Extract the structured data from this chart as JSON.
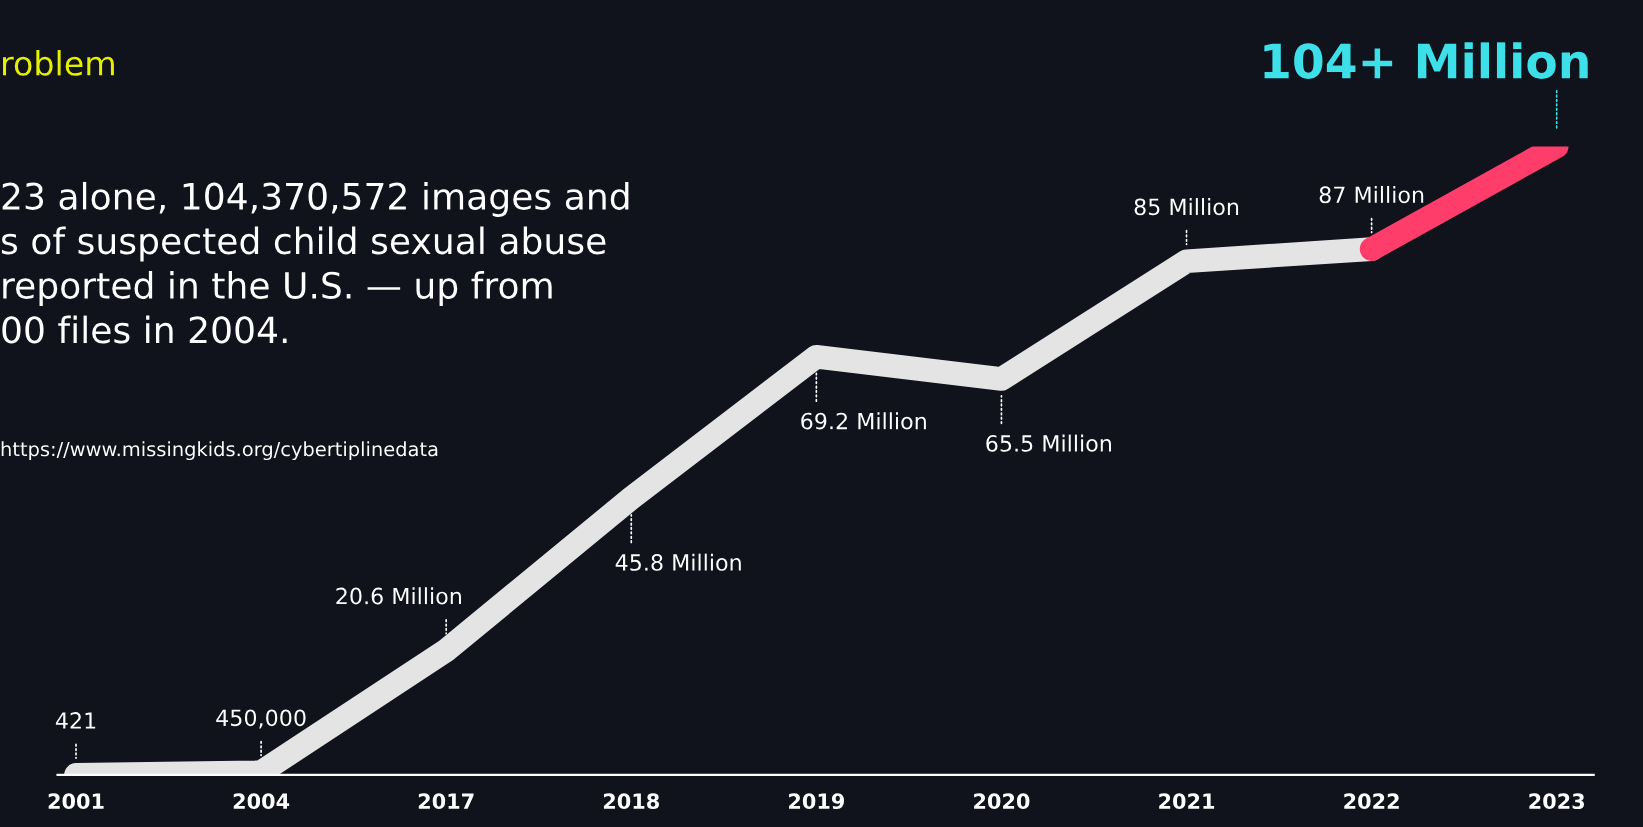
{
  "chart_data": {
    "type": "line",
    "title": "roblem",
    "subtitle": "23 alone, 104,370,572 images and\ns of suspected child sexual abuse\nreported in the U.S. — up from\n00 files in 2004.",
    "categories": [
      "2001",
      "2004",
      "2017",
      "2018",
      "2019",
      "2020",
      "2021",
      "2022",
      "2023"
    ],
    "series": [
      {
        "color": "#e4e4e4",
        "values": [
          0.000421,
          0.45,
          20.6,
          45.8,
          69.2,
          65.5,
          85,
          87,
          null
        ],
        "value_labels": [
          null,
          null,
          "20.6 Million",
          "45.8 Million",
          "69.2 Million",
          "65.5 Million",
          "85 Million",
          "87 Million",
          null
        ]
      },
      {
        "color": "#ff3d6a",
        "values": [
          null,
          null,
          null,
          null,
          null,
          null,
          null,
          87,
          104
        ]
      }
    ],
    "annotations": [
      {
        "text": "104+ Million",
        "x": "2023",
        "y": 104
      },
      {
        "text": "421",
        "x": "2001",
        "y": 0.000421
      },
      {
        "text": "450,000",
        "x": "2004",
        "y": 0.45
      },
      "https://www.missingkids.org/cybertiplinedata"
    ],
    "grid": false,
    "legend": false,
    "marker": "none",
    "line_style": "solid"
  }
}
